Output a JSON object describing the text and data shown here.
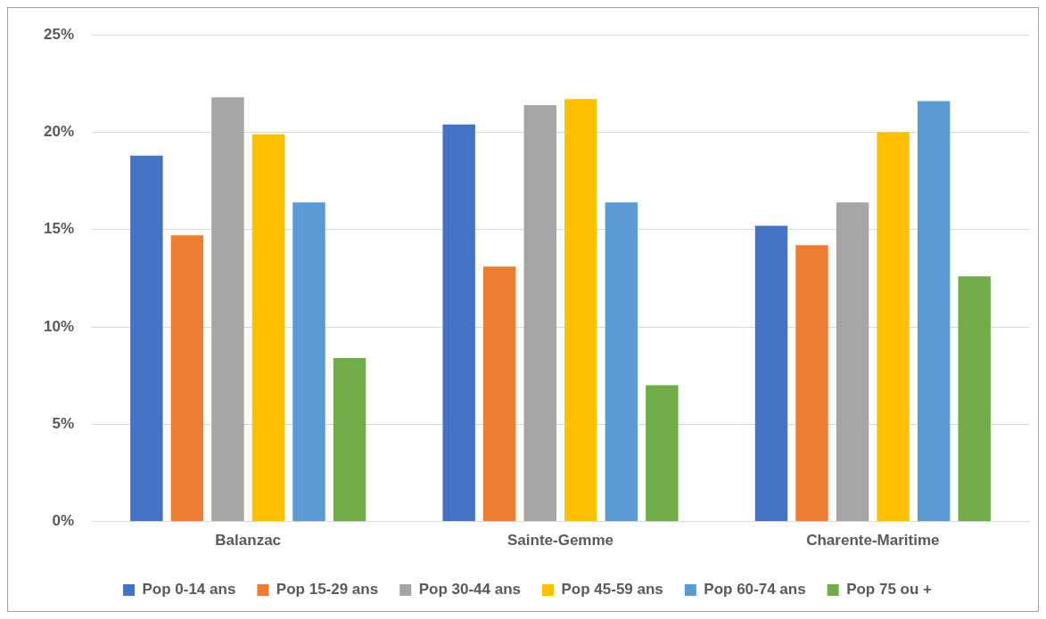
{
  "chart_data": {
    "type": "bar",
    "categories": [
      "Balanzac",
      "Sainte-Gemme",
      "Charente-Maritime"
    ],
    "series": [
      {
        "name": "Pop 0-14 ans",
        "color": "#4472c4",
        "values": [
          18.8,
          20.4,
          15.2
        ]
      },
      {
        "name": "Pop 15-29 ans",
        "color": "#ed7d31",
        "values": [
          14.7,
          13.1,
          14.2
        ]
      },
      {
        "name": "Pop 30-44 ans",
        "color": "#a5a5a5",
        "values": [
          21.8,
          21.4,
          16.4
        ]
      },
      {
        "name": "Pop 45-59 ans",
        "color": "#ffc000",
        "values": [
          19.9,
          21.7,
          20.0
        ]
      },
      {
        "name": "Pop 60-74 ans",
        "color": "#5b9bd5",
        "values": [
          16.4,
          16.4,
          21.6
        ]
      },
      {
        "name": "Pop 75 ou +",
        "color": "#70ad47",
        "values": [
          8.4,
          7.0,
          12.6
        ]
      }
    ],
    "ylim": [
      0,
      25
    ],
    "yticks": [
      {
        "value": 0,
        "label": "0%"
      },
      {
        "value": 5,
        "label": "5%"
      },
      {
        "value": 10,
        "label": "10%"
      },
      {
        "value": 15,
        "label": "15%"
      },
      {
        "value": 20,
        "label": "20%"
      },
      {
        "value": 25,
        "label": "25%"
      }
    ],
    "grid": "y",
    "legend": "bottom"
  }
}
